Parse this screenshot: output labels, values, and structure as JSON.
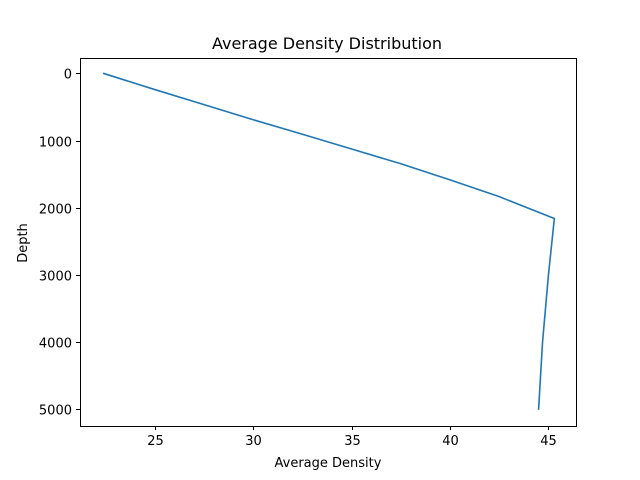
{
  "chart_data": {
    "type": "line",
    "title": "Average Density Distribution",
    "xlabel": "Average Density",
    "ylabel": "Depth",
    "xlim": [
      21.2,
      46.4
    ],
    "ylim": [
      5250,
      -230
    ],
    "y_inverted": true,
    "xticks": [
      25,
      30,
      35,
      40,
      45
    ],
    "yticks": [
      0,
      1000,
      2000,
      3000,
      4000,
      5000
    ],
    "grid": false,
    "series": [
      {
        "color": "#1f77b4",
        "points": [
          {
            "x": 22.4,
            "y": 0
          },
          {
            "x": 25.0,
            "y": 240
          },
          {
            "x": 27.5,
            "y": 465
          },
          {
            "x": 30.0,
            "y": 690
          },
          {
            "x": 32.5,
            "y": 905
          },
          {
            "x": 35.0,
            "y": 1125
          },
          {
            "x": 37.5,
            "y": 1345
          },
          {
            "x": 40.0,
            "y": 1585
          },
          {
            "x": 42.5,
            "y": 1835
          },
          {
            "x": 44.0,
            "y": 2010
          },
          {
            "x": 45.3,
            "y": 2160
          },
          {
            "x": 45.0,
            "y": 3000
          },
          {
            "x": 44.7,
            "y": 4000
          },
          {
            "x": 44.5,
            "y": 5000
          }
        ]
      }
    ]
  }
}
